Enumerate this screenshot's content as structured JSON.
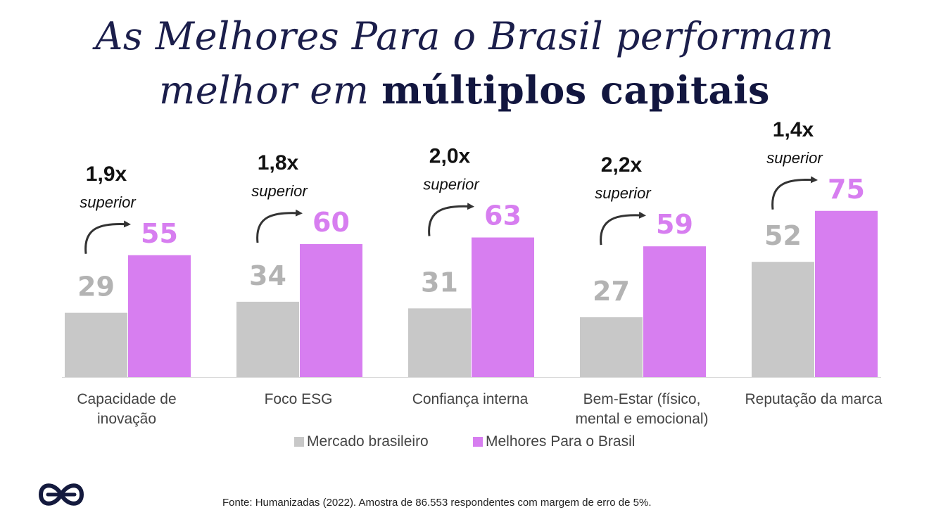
{
  "title": {
    "line1": "As Melhores Para o Brasil performam",
    "line2_prefix": "melhor em ",
    "line2_bold": "múltiplos capitais"
  },
  "chart_data": {
    "type": "bar",
    "categories": [
      [
        "Capacidade de",
        "inovação"
      ],
      [
        "Foco ESG"
      ],
      [
        "Confiança interna"
      ],
      [
        "Bem-Estar (físico,",
        "mental e emocional)"
      ],
      [
        "Reputação da marca"
      ]
    ],
    "series": [
      {
        "name": "Mercado brasileiro",
        "values": [
          29,
          34,
          31,
          27,
          52
        ],
        "color": "#c8c8c8",
        "label_color": "#b3b3b3"
      },
      {
        "name": "Melhores Para o Brasil",
        "values": [
          55,
          60,
          63,
          59,
          75
        ],
        "color": "#d77ef0",
        "label_color": "#d77ef0"
      }
    ],
    "annotations": [
      {
        "multiplier": "1,9x",
        "text": "superior"
      },
      {
        "multiplier": "1,8x",
        "text": "superior"
      },
      {
        "multiplier": "2,0x",
        "text": "superior"
      },
      {
        "multiplier": "2,2x",
        "text": "superior"
      },
      {
        "multiplier": "1,4x",
        "text": "superior"
      }
    ],
    "legend_position": "bottom",
    "grid": false,
    "ylim": [
      0,
      100
    ]
  },
  "source": "Fonte: Humanizadas (2022). Amostra de 86.553 respondentes com margem de erro de 5%.",
  "logo_icon": "humanizadas-logo-icon"
}
